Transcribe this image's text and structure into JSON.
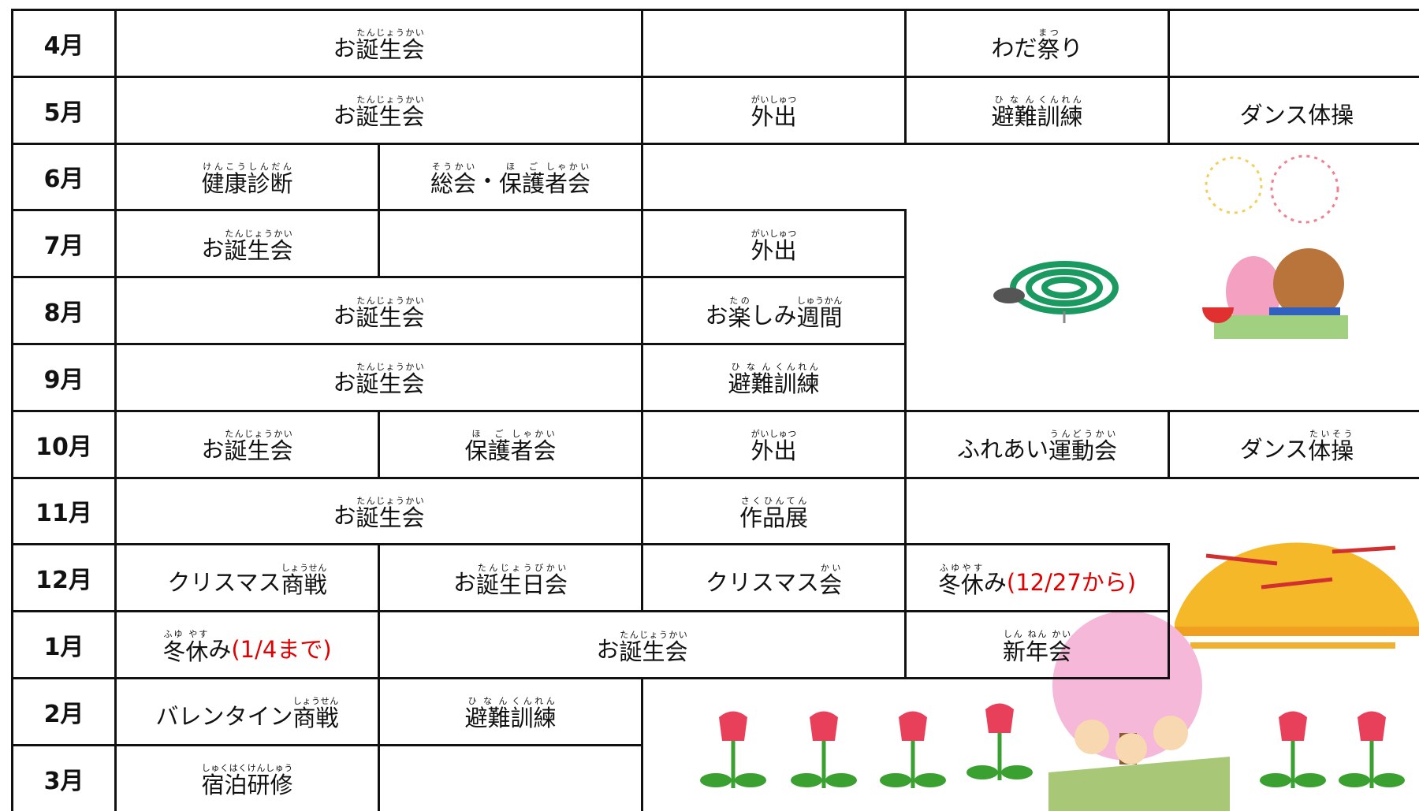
{
  "rows": [
    {
      "month": "4月",
      "cells": [
        {
          "span": 2,
          "parts": [
            {
              "b": "お"
            },
            {
              "b": "誕生会",
              "r": "たんじょうかい"
            }
          ]
        },
        {
          "span": 1
        },
        {
          "span": 1,
          "parts": [
            {
              "b": "わだ"
            },
            {
              "b": "祭",
              "r": "まつ"
            },
            {
              "b": "り"
            }
          ]
        },
        {
          "span": 1
        }
      ]
    },
    {
      "month": "5月",
      "cells": [
        {
          "span": 2,
          "parts": [
            {
              "b": "お"
            },
            {
              "b": "誕生会",
              "r": "たんじょうかい"
            }
          ]
        },
        {
          "span": 1,
          "parts": [
            {
              "b": "外出",
              "r": "がいしゅつ"
            }
          ]
        },
        {
          "span": 1,
          "parts": [
            {
              "b": "避難",
              "r": "ひなん"
            },
            {
              "b": "訓練",
              "r": "くんれん"
            }
          ]
        },
        {
          "span": 1,
          "parts": [
            {
              "b": "ダンス体操"
            }
          ]
        }
      ]
    },
    {
      "month": "6月",
      "cells": [
        {
          "span": 1,
          "parts": [
            {
              "b": "健康",
              "r": "けんこう"
            },
            {
              "b": "診断",
              "r": "しんだん"
            }
          ]
        },
        {
          "span": 1,
          "parts": [
            {
              "b": "総会",
              "r": "そうかい"
            },
            {
              "b": "・"
            },
            {
              "b": "保護",
              "r": "ほご"
            },
            {
              "b": "者",
              "r": "しゃ"
            },
            {
              "b": "会",
              "r": "かい"
            }
          ]
        }
      ]
    },
    {
      "month": "7月",
      "cells": [
        {
          "span": 1,
          "parts": [
            {
              "b": "お"
            },
            {
              "b": "誕生会",
              "r": "たんじょうかい"
            }
          ]
        },
        {
          "span": 1
        },
        {
          "span": 1,
          "parts": [
            {
              "b": "外出",
              "r": "がいしゅつ"
            }
          ]
        }
      ]
    },
    {
      "month": "8月",
      "cells": [
        {
          "span": 2,
          "parts": [
            {
              "b": "お"
            },
            {
              "b": "誕生会",
              "r": "たんじょうかい"
            }
          ]
        },
        {
          "span": 1,
          "parts": [
            {
              "b": "お"
            },
            {
              "b": "楽",
              "r": "たの"
            },
            {
              "b": "しみ"
            },
            {
              "b": "週間",
              "r": "しゅうかん"
            }
          ]
        }
      ]
    },
    {
      "month": "9月",
      "cells": [
        {
          "span": 2,
          "parts": [
            {
              "b": "お"
            },
            {
              "b": "誕生会",
              "r": "たんじょうかい"
            }
          ]
        },
        {
          "span": 1,
          "parts": [
            {
              "b": "避難",
              "r": "ひなん"
            },
            {
              "b": "訓練",
              "r": "くんれん"
            }
          ]
        }
      ]
    },
    {
      "month": "10月",
      "cells": [
        {
          "span": 1,
          "parts": [
            {
              "b": "お"
            },
            {
              "b": "誕生会",
              "r": "たんじょうかい"
            }
          ]
        },
        {
          "span": 1,
          "parts": [
            {
              "b": "保護",
              "r": "ほご"
            },
            {
              "b": "者",
              "r": "しゃ"
            },
            {
              "b": "会",
              "r": "かい"
            }
          ]
        },
        {
          "span": 1,
          "parts": [
            {
              "b": "外出",
              "r": "がいしゅつ"
            }
          ]
        },
        {
          "span": 1,
          "parts": [
            {
              "b": "ふれあい"
            },
            {
              "b": "運動会",
              "r": "うんどうかい"
            }
          ]
        },
        {
          "span": 1,
          "parts": [
            {
              "b": "ダンス"
            },
            {
              "b": "体操",
              "r": "たいそう"
            }
          ]
        }
      ]
    },
    {
      "month": "11月",
      "cells": [
        {
          "span": 2,
          "parts": [
            {
              "b": "お"
            },
            {
              "b": "誕生会",
              "r": "たんじょうかい"
            }
          ]
        },
        {
          "span": 1,
          "parts": [
            {
              "b": "作品展",
              "r": "さくひんてん"
            }
          ]
        }
      ]
    },
    {
      "month": "12月",
      "cells": [
        {
          "span": 1,
          "parts": [
            {
              "b": "クリスマス"
            },
            {
              "b": "商戦",
              "r": "しょうせん"
            }
          ]
        },
        {
          "span": 1,
          "parts": [
            {
              "b": "お"
            },
            {
              "b": "誕生日",
              "r": "たんじょうび"
            },
            {
              "b": "会",
              "r": "かい"
            }
          ]
        },
        {
          "span": 1,
          "parts": [
            {
              "b": "クリスマス"
            },
            {
              "b": "会",
              "r": "かい"
            }
          ]
        },
        {
          "span": 1,
          "parts": [
            {
              "b": "冬休",
              "r": "ふゆやす"
            },
            {
              "b": "み"
            }
          ],
          "note": "(12/27から)"
        }
      ]
    },
    {
      "month": "1月",
      "cells": [
        {
          "span": 1,
          "parts": [
            {
              "b": "冬休",
              "r": "ふゆ やす"
            },
            {
              "b": "み"
            }
          ],
          "note": "(1/4まで)"
        },
        {
          "span": 2,
          "parts": [
            {
              "b": "お"
            },
            {
              "b": "誕生会",
              "r": "たんじょうかい"
            }
          ]
        },
        {
          "span": 1,
          "parts": [
            {
              "b": "新年会",
              "r": "しん ねん かい"
            }
          ]
        }
      ]
    },
    {
      "month": "2月",
      "cells": [
        {
          "span": 1,
          "parts": [
            {
              "b": "バレンタイン"
            },
            {
              "b": "商戦",
              "r": "しょうせん"
            }
          ]
        },
        {
          "span": 1,
          "parts": [
            {
              "b": "避難",
              "r": "ひなん"
            },
            {
              "b": "訓練",
              "r": "くんれん"
            }
          ]
        }
      ]
    },
    {
      "month": "3月",
      "cells": [
        {
          "span": 1,
          "parts": [
            {
              "b": "宿泊",
              "r": "しゅくはく"
            },
            {
              "b": "研修",
              "r": "けんしゅう"
            }
          ]
        },
        {
          "span": 1
        }
      ]
    }
  ]
}
